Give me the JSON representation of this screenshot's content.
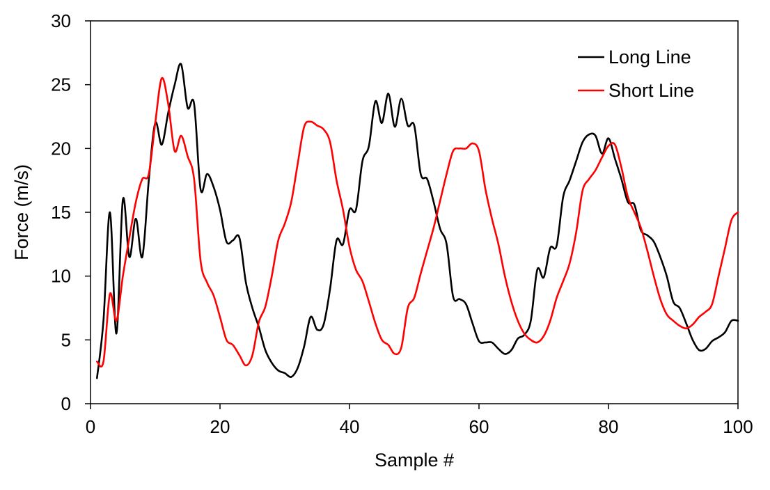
{
  "chart_data": {
    "type": "line",
    "title": "",
    "xlabel": "Sample #",
    "ylabel": "Force (m/s)",
    "xlim": [
      0,
      100
    ],
    "ylim": [
      0,
      30
    ],
    "x_ticks": [
      0,
      20,
      40,
      60,
      80,
      100
    ],
    "y_ticks": [
      0,
      5,
      10,
      15,
      20,
      25,
      30
    ],
    "grid": false,
    "legend_position": "top-right",
    "series": [
      {
        "name": "Long Line",
        "color": "#000000",
        "x": [
          1,
          2,
          3,
          4,
          5,
          6,
          7,
          8,
          9,
          10,
          11,
          12,
          13,
          14,
          15,
          16,
          17,
          18,
          19,
          20,
          21,
          22,
          23,
          24,
          25,
          26,
          27,
          28,
          29,
          30,
          31,
          32,
          33,
          34,
          35,
          36,
          37,
          38,
          39,
          40,
          41,
          42,
          43,
          44,
          45,
          46,
          47,
          48,
          49,
          50,
          51,
          52,
          53,
          54,
          55,
          56,
          57,
          58,
          59,
          60,
          61,
          62,
          63,
          64,
          65,
          66,
          67,
          68,
          69,
          70,
          71,
          72,
          73,
          74,
          75,
          76,
          77,
          78,
          79,
          80,
          81,
          82,
          83,
          84,
          85,
          86,
          87,
          88,
          89,
          90,
          91,
          92,
          93,
          94,
          95,
          96,
          97,
          98,
          99,
          100
        ],
        "values": [
          2.0,
          6.5,
          15.0,
          5.5,
          16.0,
          11.5,
          14.5,
          11.5,
          17.5,
          22.0,
          20.3,
          22.8,
          25.0,
          26.6,
          23.2,
          23.5,
          16.8,
          18.0,
          17.0,
          15.2,
          12.7,
          12.8,
          13.0,
          9.5,
          7.5,
          6.0,
          4.2,
          3.2,
          2.6,
          2.4,
          2.1,
          2.8,
          4.5,
          6.8,
          5.8,
          6.2,
          9.0,
          12.8,
          12.5,
          15.2,
          15.2,
          19.0,
          20.2,
          23.7,
          22.0,
          24.3,
          21.7,
          23.9,
          21.8,
          21.8,
          18.0,
          17.6,
          15.8,
          13.7,
          12.5,
          8.4,
          8.2,
          7.8,
          6.3,
          4.9,
          4.8,
          4.8,
          4.3,
          3.9,
          4.2,
          5.1,
          5.4,
          6.5,
          10.5,
          9.9,
          12.2,
          12.4,
          16.2,
          17.5,
          19.0,
          20.5,
          21.1,
          21.0,
          19.6,
          20.8,
          19.2,
          17.6,
          15.8,
          15.6,
          13.6,
          13.2,
          12.7,
          11.5,
          10.0,
          8.0,
          7.5,
          6.3,
          5.0,
          4.2,
          4.3,
          4.9,
          5.2,
          5.6,
          6.5,
          6.5
        ]
      },
      {
        "name": "Short Line",
        "color": "#ff0000",
        "x": [
          1,
          2,
          3,
          4,
          5,
          6,
          7,
          8,
          9,
          10,
          11,
          12,
          13,
          14,
          15,
          16,
          17,
          18,
          19,
          20,
          21,
          22,
          23,
          24,
          25,
          26,
          27,
          28,
          29,
          30,
          31,
          32,
          33,
          34,
          35,
          36,
          37,
          38,
          39,
          40,
          41,
          42,
          43,
          44,
          45,
          46,
          47,
          48,
          49,
          50,
          51,
          52,
          53,
          54,
          55,
          56,
          57,
          58,
          59,
          60,
          61,
          62,
          63,
          64,
          65,
          66,
          67,
          68,
          69,
          70,
          71,
          72,
          73,
          74,
          75,
          76,
          77,
          78,
          79,
          80,
          81,
          82,
          83,
          84,
          85,
          86,
          87,
          88,
          89,
          90,
          91,
          92,
          93,
          94,
          95,
          96,
          97,
          98,
          99,
          100
        ],
        "values": [
          3.3,
          3.3,
          8.6,
          6.5,
          10.0,
          13.0,
          15.8,
          17.6,
          18.0,
          22.0,
          25.5,
          23.5,
          19.8,
          21.0,
          19.4,
          17.6,
          11.2,
          9.5,
          8.5,
          6.8,
          5.0,
          4.6,
          3.8,
          3.0,
          3.8,
          6.4,
          7.6,
          10.0,
          12.8,
          14.1,
          15.8,
          18.8,
          21.7,
          22.1,
          21.8,
          21.5,
          20.5,
          17.5,
          15.2,
          12.3,
          10.5,
          9.6,
          8.0,
          6.3,
          5.0,
          4.6,
          3.9,
          4.4,
          7.5,
          8.3,
          10.2,
          12.0,
          13.8,
          15.9,
          18.0,
          19.8,
          20.0,
          20.0,
          20.4,
          19.8,
          16.8,
          14.5,
          12.5,
          10.0,
          8.0,
          6.5,
          5.5,
          5.0,
          4.8,
          5.3,
          6.5,
          8.3,
          9.6,
          11.0,
          13.4,
          16.7,
          17.6,
          18.3,
          19.3,
          20.2,
          20.3,
          18.5,
          16.2,
          15.0,
          13.8,
          12.0,
          10.0,
          8.2,
          7.0,
          6.5,
          6.1,
          5.9,
          6.2,
          6.8,
          7.2,
          7.8,
          10.0,
          12.2,
          14.4,
          15.0
        ]
      }
    ]
  }
}
